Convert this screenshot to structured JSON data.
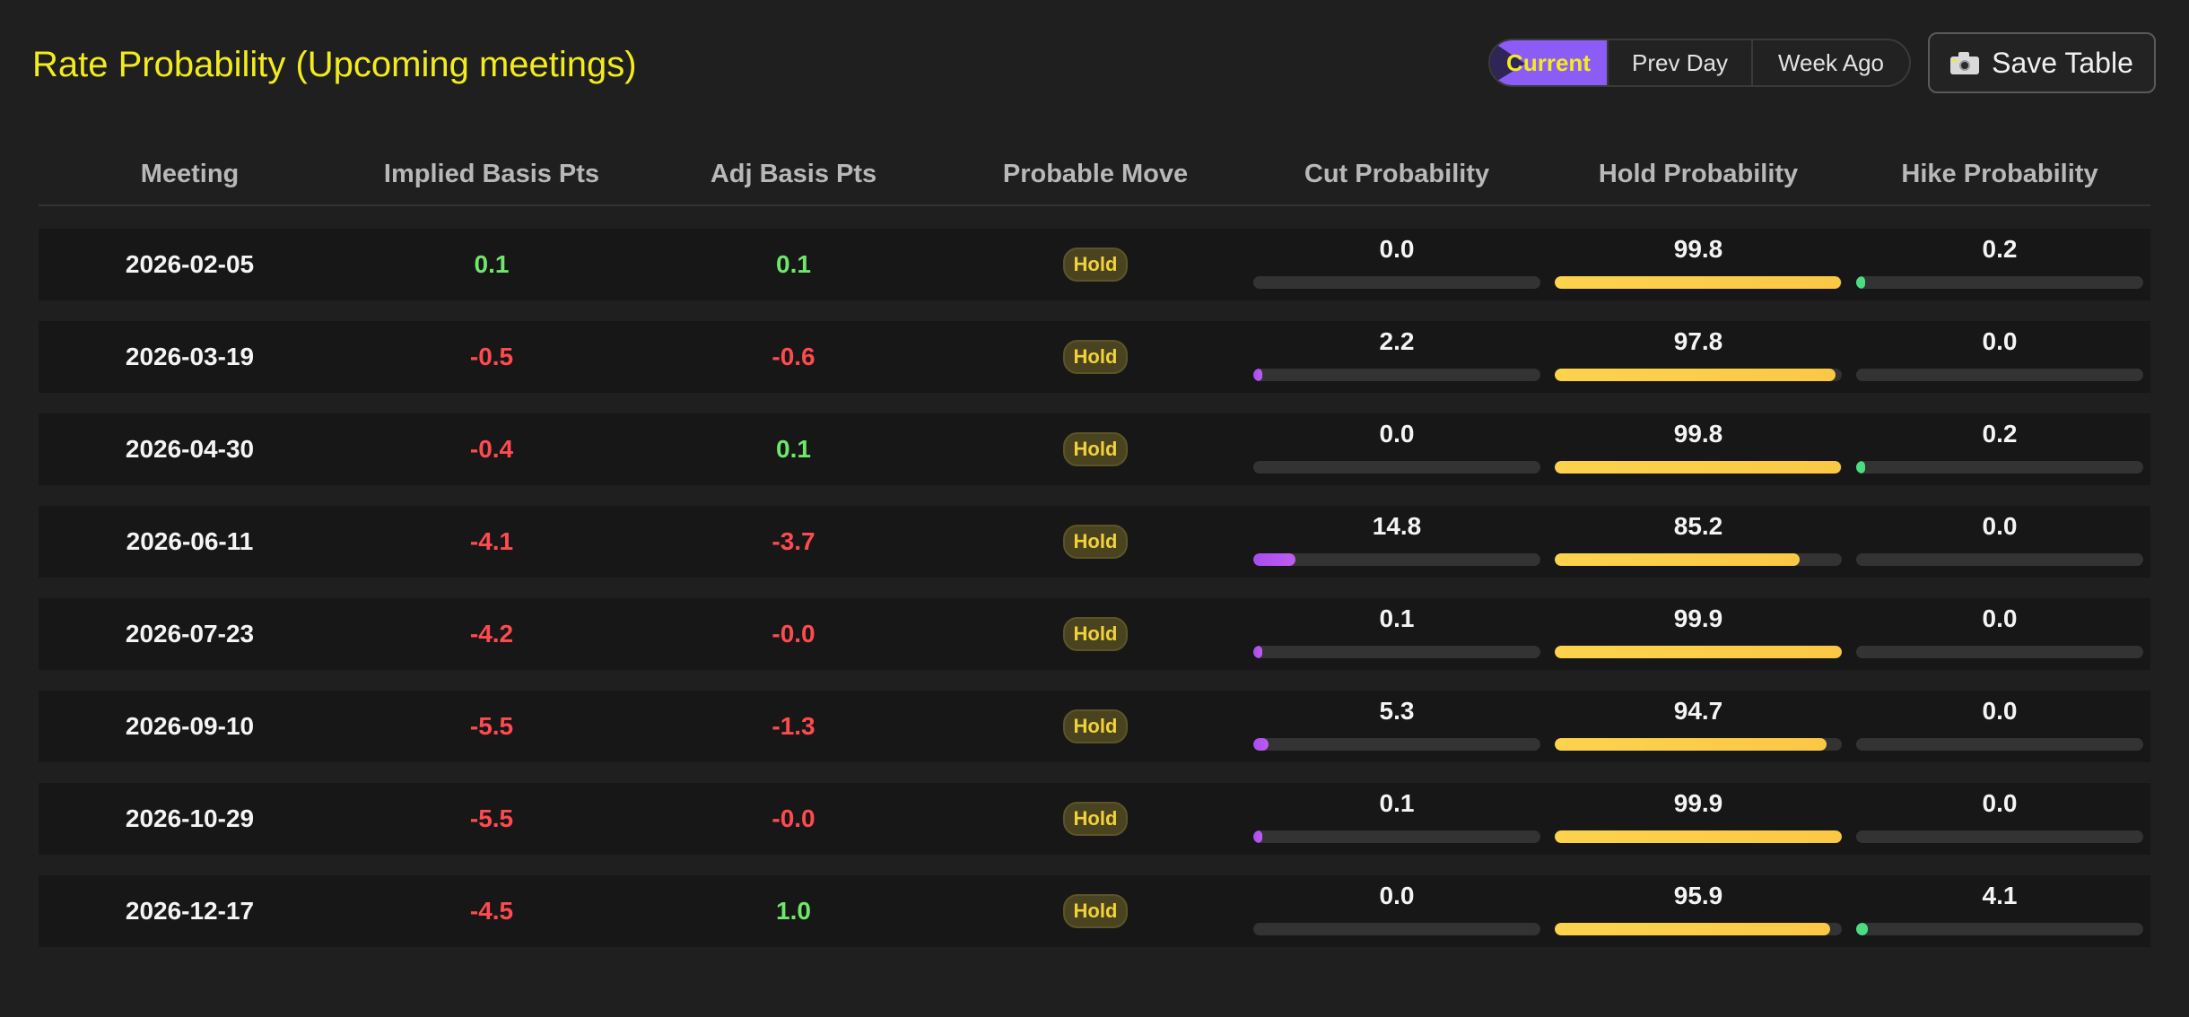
{
  "title": "Rate Probability (Upcoming meetings)",
  "toggle": {
    "options": [
      "Current",
      "Prev Day",
      "Week Ago"
    ],
    "active": "Current"
  },
  "save_button": {
    "label": "Save Table",
    "icon": "camera-icon"
  },
  "colors": {
    "title": "#f2ec1e",
    "cut": "#c05cf0",
    "hold": "#fbc846",
    "hike": "#4ade80",
    "positive": "#6ee76a",
    "negative": "#ff4a4f"
  },
  "columns": [
    "Meeting",
    "Implied Basis Pts",
    "Adj Basis Pts",
    "Probable Move",
    "Cut Probability",
    "Hold Probability",
    "Hike Probability"
  ],
  "rows": [
    {
      "meeting": "2026-02-05",
      "implied": "0.1",
      "adj": "0.1",
      "move": "Hold",
      "cut": "0.0",
      "hold": "99.8",
      "hike": "0.2"
    },
    {
      "meeting": "2026-03-19",
      "implied": "-0.5",
      "adj": "-0.6",
      "move": "Hold",
      "cut": "2.2",
      "hold": "97.8",
      "hike": "0.0"
    },
    {
      "meeting": "2026-04-30",
      "implied": "-0.4",
      "adj": "0.1",
      "move": "Hold",
      "cut": "0.0",
      "hold": "99.8",
      "hike": "0.2"
    },
    {
      "meeting": "2026-06-11",
      "implied": "-4.1",
      "adj": "-3.7",
      "move": "Hold",
      "cut": "14.8",
      "hold": "85.2",
      "hike": "0.0"
    },
    {
      "meeting": "2026-07-23",
      "implied": "-4.2",
      "adj": "-0.0",
      "move": "Hold",
      "cut": "0.1",
      "hold": "99.9",
      "hike": "0.0"
    },
    {
      "meeting": "2026-09-10",
      "implied": "-5.5",
      "adj": "-1.3",
      "move": "Hold",
      "cut": "5.3",
      "hold": "94.7",
      "hike": "0.0"
    },
    {
      "meeting": "2026-10-29",
      "implied": "-5.5",
      "adj": "-0.0",
      "move": "Hold",
      "cut": "0.1",
      "hold": "99.9",
      "hike": "0.0"
    },
    {
      "meeting": "2026-12-17",
      "implied": "-4.5",
      "adj": "1.0",
      "move": "Hold",
      "cut": "0.0",
      "hold": "95.9",
      "hike": "4.1"
    }
  ]
}
